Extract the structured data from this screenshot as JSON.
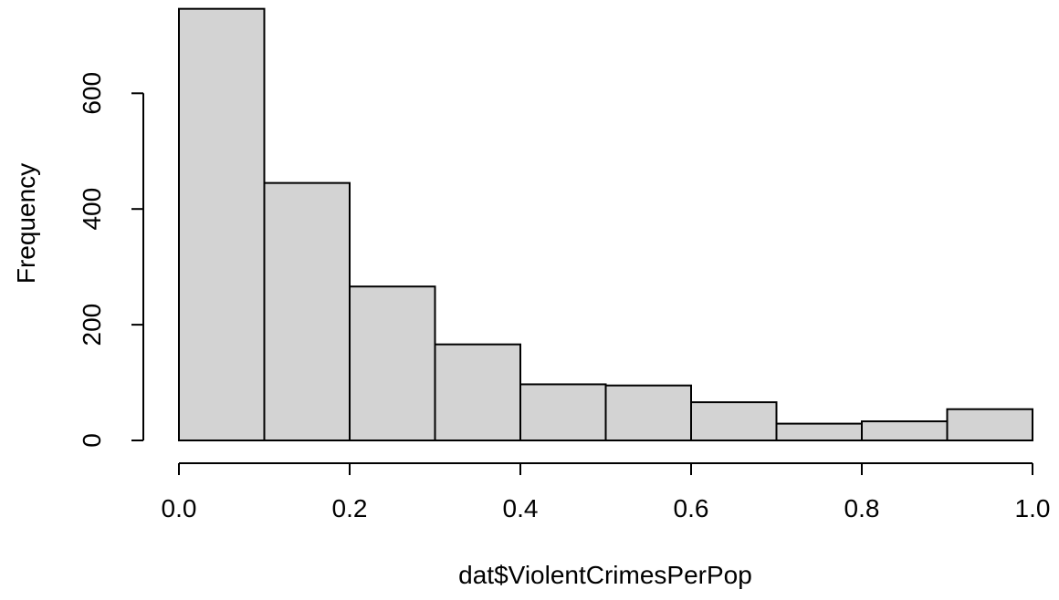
{
  "chart_data": {
    "type": "bar",
    "title": "",
    "xlabel": "dat$ViolentCrimesPerPop",
    "ylabel": "Frequency",
    "bins": [
      {
        "from": 0.0,
        "to": 0.1,
        "count": 746
      },
      {
        "from": 0.1,
        "to": 0.2,
        "count": 445
      },
      {
        "from": 0.2,
        "to": 0.3,
        "count": 266
      },
      {
        "from": 0.3,
        "to": 0.4,
        "count": 166
      },
      {
        "from": 0.4,
        "to": 0.5,
        "count": 97
      },
      {
        "from": 0.5,
        "to": 0.6,
        "count": 95
      },
      {
        "from": 0.6,
        "to": 0.7,
        "count": 66
      },
      {
        "from": 0.7,
        "to": 0.8,
        "count": 29
      },
      {
        "from": 0.8,
        "to": 0.9,
        "count": 33
      },
      {
        "from": 0.9,
        "to": 1.0,
        "count": 54
      }
    ],
    "xlim": [
      0,
      1
    ],
    "ylim": [
      0,
      746
    ],
    "x_ticks": [
      {
        "value": 0.0,
        "label": "0.0"
      },
      {
        "value": 0.2,
        "label": "0.2"
      },
      {
        "value": 0.4,
        "label": "0.4"
      },
      {
        "value": 0.6,
        "label": "0.6"
      },
      {
        "value": 0.8,
        "label": "0.8"
      },
      {
        "value": 1.0,
        "label": "1.0"
      }
    ],
    "y_ticks": [
      {
        "value": 0,
        "label": "0"
      },
      {
        "value": 200,
        "label": "200"
      },
      {
        "value": 400,
        "label": "400"
      },
      {
        "value": 600,
        "label": "600"
      }
    ],
    "y_axis_range": [
      0,
      600
    ],
    "grid": false,
    "colors": {
      "bar_fill": "#d3d3d3",
      "bar_stroke": "#000000"
    }
  }
}
